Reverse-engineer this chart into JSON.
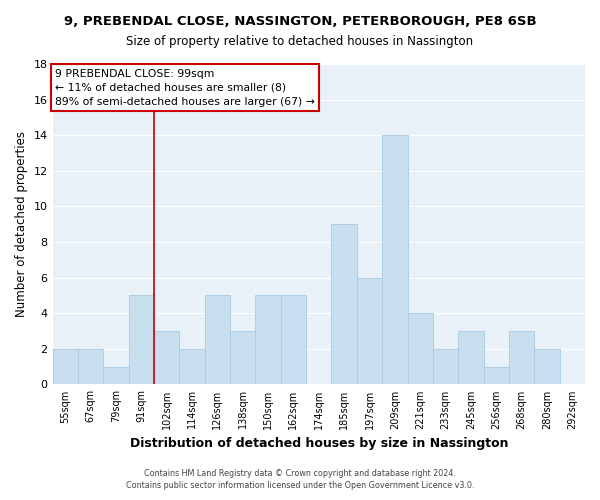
{
  "title_line1": "9, PREBENDAL CLOSE, NASSINGTON, PETERBOROUGH, PE8 6SB",
  "title_line2": "Size of property relative to detached houses in Nassington",
  "xlabel": "Distribution of detached houses by size in Nassington",
  "ylabel": "Number of detached properties",
  "bar_labels": [
    "55sqm",
    "67sqm",
    "79sqm",
    "91sqm",
    "102sqm",
    "114sqm",
    "126sqm",
    "138sqm",
    "150sqm",
    "162sqm",
    "174sqm",
    "185sqm",
    "197sqm",
    "209sqm",
    "221sqm",
    "233sqm",
    "245sqm",
    "256sqm",
    "268sqm",
    "280sqm",
    "292sqm"
  ],
  "bar_values": [
    2,
    2,
    1,
    5,
    3,
    2,
    5,
    3,
    5,
    5,
    0,
    9,
    6,
    14,
    4,
    2,
    3,
    1,
    3,
    2,
    0
  ],
  "bar_color": "#c8dff0",
  "bar_edge_color": "#aac8e0",
  "property_line_index": 4,
  "annotation_title": "9 PREBENDAL CLOSE: 99sqm",
  "annotation_line1": "← 11% of detached houses are smaller (8)",
  "annotation_line2": "89% of semi-detached houses are larger (67) →",
  "annotation_box_facecolor": "#ffffff",
  "annotation_box_edgecolor": "#cc0000",
  "property_line_color": "#cc0000",
  "ylim": [
    0,
    18
  ],
  "yticks": [
    0,
    2,
    4,
    6,
    8,
    10,
    12,
    14,
    16,
    18
  ],
  "footer_line1": "Contains HM Land Registry data © Crown copyright and database right 2024.",
  "footer_line2": "Contains public sector information licensed under the Open Government Licence v3.0.",
  "bg_color": "#e8f0f8",
  "grid_color": "#ffffff"
}
